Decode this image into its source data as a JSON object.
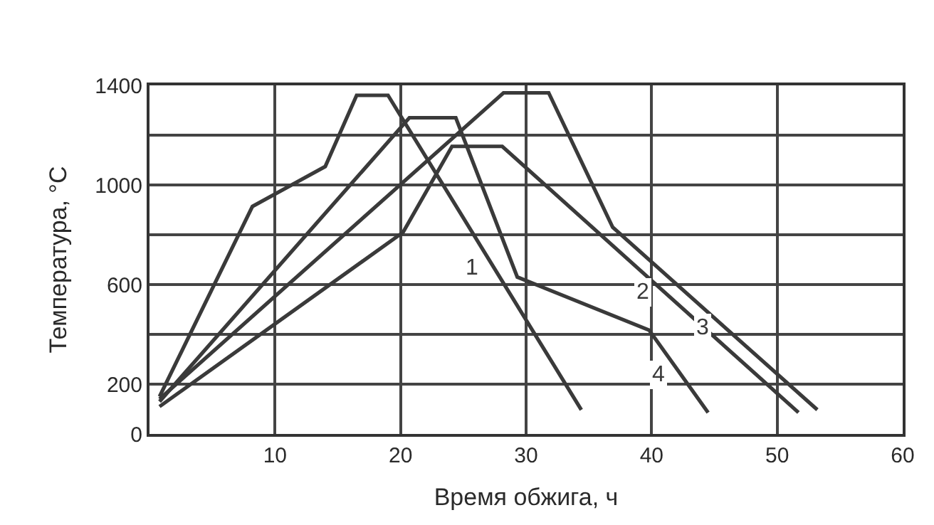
{
  "chart_data": {
    "type": "line",
    "xlabel": "Время обжига, ч",
    "ylabel": "Температура, °C",
    "xlim": [
      0,
      60
    ],
    "xticks": [
      10,
      20,
      30,
      40,
      50,
      60
    ],
    "ylim": [
      0,
      1400
    ],
    "yticks": [
      0,
      200,
      {
        "value": 400,
        "label": null
      },
      600,
      {
        "value": 800,
        "label": null
      },
      1000,
      {
        "value": 1200,
        "label": null
      },
      1400
    ],
    "grid": true,
    "legend": false,
    "marker": "none",
    "line_style": "solid",
    "series": [
      {
        "name": "1",
        "color": "#3a3a3a",
        "x": [
          0.8,
          8.2,
          14.0,
          16.5,
          19.0,
          34.4
        ],
        "values": [
          150,
          914,
          1074,
          1360,
          1360,
          97
        ]
      },
      {
        "name": "2",
        "color": "#3a3a3a",
        "x": [
          0.8,
          20.2,
          24.1,
          28.1,
          51.7
        ],
        "values": [
          110,
          810,
          1155,
          1155,
          86
        ]
      },
      {
        "name": "3",
        "color": "#3a3a3a",
        "x": [
          0.8,
          28.2,
          31.8,
          36.9,
          53.2
        ],
        "values": [
          140,
          1370,
          1370,
          830,
          97
        ]
      },
      {
        "name": "4",
        "color": "#3a3a3a",
        "x": [
          0.8,
          20.7,
          24.4,
          29.3,
          39.8,
          44.5
        ],
        "values": [
          130,
          1270,
          1270,
          630,
          417,
          86
        ]
      }
    ]
  }
}
